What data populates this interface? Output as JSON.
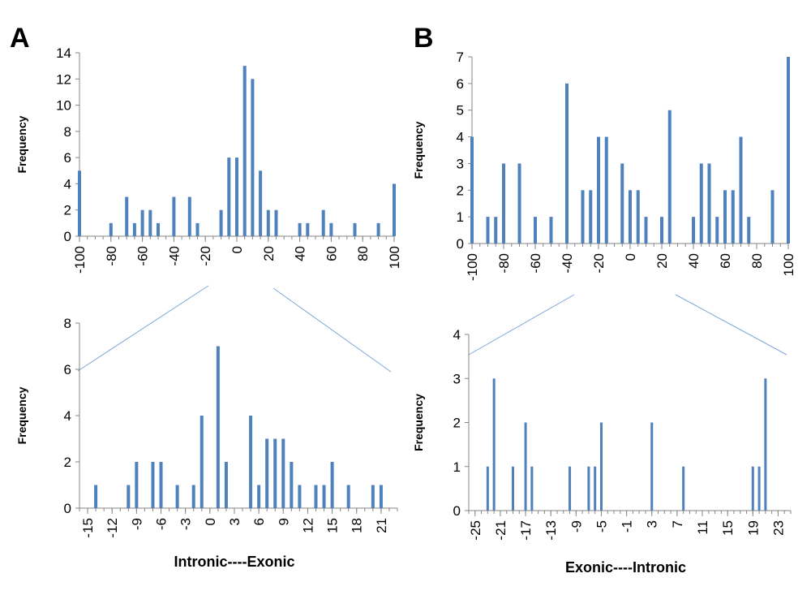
{
  "figure": {
    "panel_labels": [
      "A",
      "B"
    ],
    "bar_color": "#4F81BD",
    "connector_color": "#7FA7D8"
  },
  "chart_data": [
    {
      "id": "A-top",
      "type": "bar",
      "ylabel": "Frequency",
      "xlabel": "",
      "xlim": [
        -100,
        100
      ],
      "ylim": [
        0,
        14
      ],
      "yticks": [
        0,
        2,
        4,
        6,
        8,
        10,
        12,
        14
      ],
      "xticks": [
        -100,
        -80,
        -60,
        -40,
        -20,
        0,
        20,
        40,
        60,
        80,
        100
      ],
      "x": [
        -100,
        -80,
        -70,
        -65,
        -60,
        -55,
        -50,
        -40,
        -30,
        -25,
        -10,
        -5,
        0,
        5,
        10,
        15,
        20,
        25,
        40,
        45,
        55,
        60,
        75,
        90,
        100
      ],
      "values": [
        5,
        1,
        3,
        1,
        2,
        2,
        1,
        3,
        3,
        1,
        2,
        6,
        6,
        13,
        12,
        5,
        2,
        2,
        1,
        1,
        2,
        1,
        1,
        1,
        4
      ]
    },
    {
      "id": "A-bottom",
      "type": "bar",
      "ylabel": "Frequency",
      "xlabel": "Intronic----Exonic",
      "xlim": [
        -16,
        23
      ],
      "ylim": [
        0,
        8
      ],
      "yticks": [
        0,
        2,
        4,
        6,
        8
      ],
      "xticks": [
        -15,
        -12,
        -9,
        -6,
        -3,
        0,
        3,
        6,
        9,
        12,
        15,
        18,
        21
      ],
      "x": [
        -14,
        -10,
        -9,
        -7,
        -6,
        -4,
        -2,
        -1,
        1,
        2,
        5,
        6,
        7,
        8,
        9,
        10,
        11,
        13,
        14,
        15,
        17,
        20,
        21
      ],
      "values": [
        1,
        1,
        2,
        2,
        2,
        1,
        1,
        4,
        7,
        2,
        4,
        1,
        3,
        3,
        3,
        2,
        1,
        1,
        1,
        2,
        1,
        1,
        1
      ]
    },
    {
      "id": "B-top",
      "type": "bar",
      "ylabel": "Frequency",
      "xlabel": "",
      "xlim": [
        -100,
        100
      ],
      "ylim": [
        0,
        7
      ],
      "yticks": [
        0,
        1,
        2,
        3,
        4,
        5,
        6,
        7
      ],
      "xticks": [
        -100,
        -80,
        -60,
        -40,
        -20,
        0,
        20,
        40,
        60,
        80,
        100
      ],
      "x": [
        -100,
        -90,
        -85,
        -80,
        -70,
        -60,
        -50,
        -40,
        -30,
        -25,
        -20,
        -15,
        -5,
        0,
        5,
        10,
        20,
        25,
        40,
        45,
        50,
        55,
        60,
        65,
        70,
        75,
        90,
        100
      ],
      "values": [
        4,
        1,
        1,
        3,
        3,
        1,
        1,
        6,
        2,
        2,
        4,
        4,
        3,
        2,
        2,
        1,
        1,
        5,
        1,
        3,
        3,
        1,
        2,
        2,
        4,
        1,
        2,
        7
      ]
    },
    {
      "id": "B-bottom",
      "type": "bar",
      "ylabel": "Frequency",
      "xlabel": "Exonic----Intronic",
      "xlim": [
        -26,
        25
      ],
      "ylim": [
        0,
        4
      ],
      "yticks": [
        0,
        1,
        2,
        3,
        4
      ],
      "xticks": [
        -25,
        -21,
        -17,
        -13,
        -9,
        -5,
        -1,
        3,
        7,
        11,
        15,
        19,
        23
      ],
      "x": [
        -23,
        -22,
        -19,
        -17,
        -16,
        -10,
        -7,
        -6,
        -5,
        3,
        8,
        19,
        20,
        21
      ],
      "values": [
        1,
        3,
        1,
        2,
        1,
        1,
        1,
        1,
        2,
        2,
        1,
        1,
        1,
        3
      ]
    }
  ]
}
